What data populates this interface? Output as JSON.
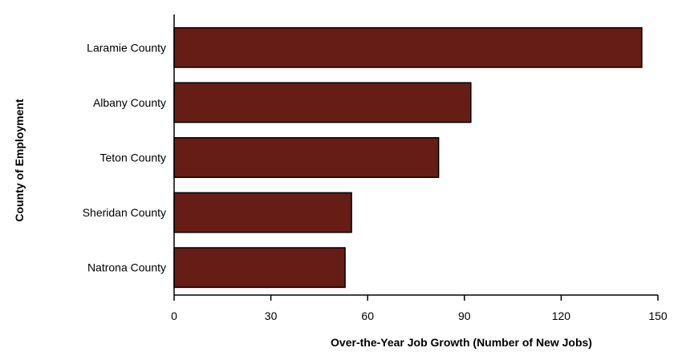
{
  "chart_data": {
    "type": "bar",
    "orientation": "horizontal",
    "categories": [
      "Laramie County",
      "Albany County",
      "Teton County",
      "Sheridan County",
      "Natrona County"
    ],
    "values": [
      145,
      92,
      82,
      55,
      53
    ],
    "xlabel": "Over-the-Year Job Growth (Number of New Jobs)",
    "ylabel": "County of Employment",
    "xlim": [
      0,
      150
    ],
    "xticks": [
      0,
      30,
      60,
      90,
      120,
      150
    ],
    "grid": false,
    "legend": "none",
    "colors": {
      "bar_fill": "#661d16",
      "bar_stroke": "#000000",
      "axis": "#000000"
    }
  }
}
